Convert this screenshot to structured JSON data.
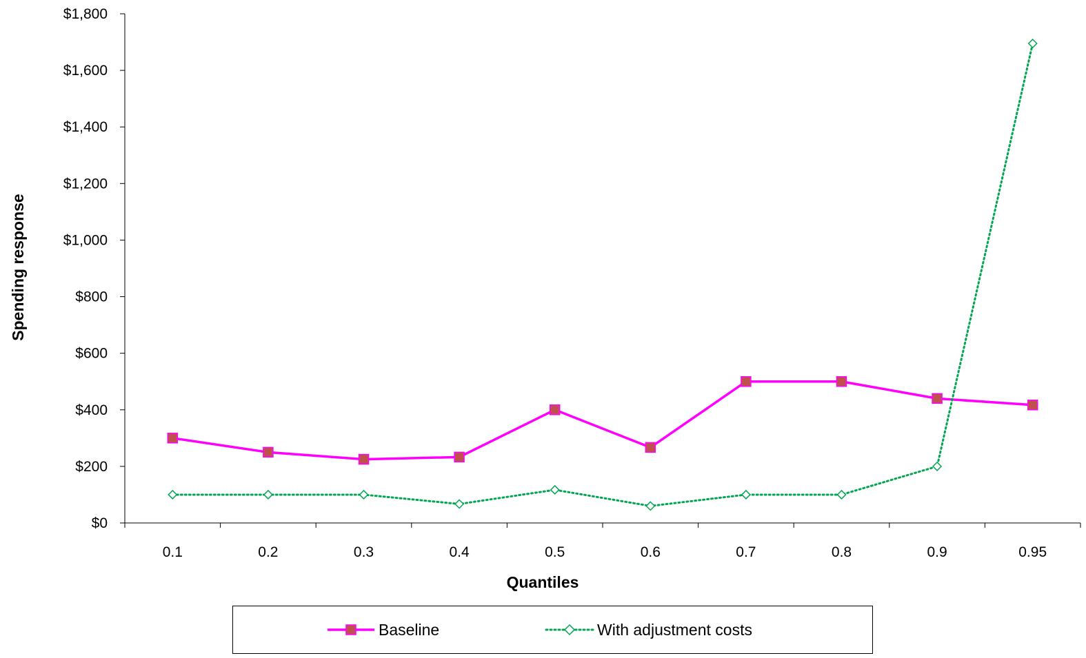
{
  "chart_data": {
    "type": "line",
    "title": "",
    "xlabel": "Quantiles",
    "ylabel": "Spending response",
    "categories": [
      "0.1",
      "0.2",
      "0.3",
      "0.4",
      "0.5",
      "0.6",
      "0.7",
      "0.8",
      "0.9",
      "0.95"
    ],
    "ylim": [
      0,
      1800
    ],
    "yticks": [
      0,
      200,
      400,
      600,
      800,
      1000,
      1200,
      1400,
      1600,
      1800
    ],
    "ytick_labels": [
      "$0",
      "$200",
      "$400",
      "$600",
      "$800",
      "$1,000",
      "$1,200",
      "$1,400",
      "$1,600",
      "$1,800"
    ],
    "grid": false,
    "legend_position": "bottom",
    "series": [
      {
        "name": "Baseline",
        "color": "#ff00ff",
        "marker": "square",
        "marker_color": "#c0504d",
        "line_style": "solid",
        "values": [
          300,
          250,
          225,
          233,
          400,
          267,
          500,
          500,
          440,
          417
        ]
      },
      {
        "name": "With adjustment costs",
        "color": "#00a651",
        "marker": "diamond",
        "marker_color": "#00a651",
        "line_style": "dotted",
        "values": [
          100,
          100,
          100,
          67,
          117,
          60,
          100,
          100,
          200,
          1695
        ]
      }
    ]
  }
}
